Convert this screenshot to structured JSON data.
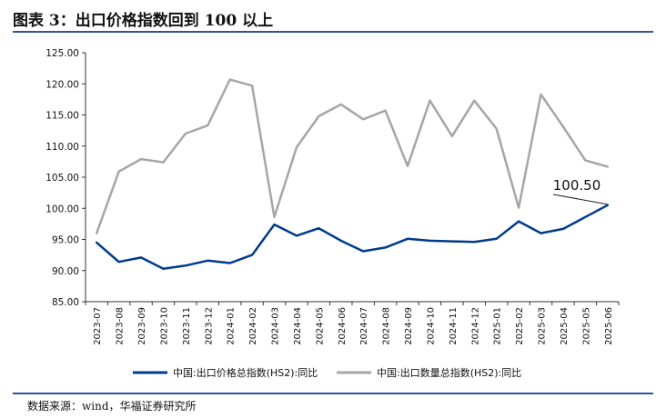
{
  "figure": {
    "title": "图表 3：出口价格指数回到 100 以上",
    "source": "数据来源：wind，华福证券研究所"
  },
  "chart_data": {
    "type": "line",
    "title": "",
    "xlabel": "",
    "ylabel": "",
    "ylim": [
      85,
      125
    ],
    "ytick_labels": [
      "85.00",
      "90.00",
      "95.00",
      "100.00",
      "105.00",
      "110.00",
      "115.00",
      "120.00",
      "125.00"
    ],
    "grid": false,
    "legend_position": "bottom",
    "x": [
      "2023-07",
      "2023-08",
      "2023-09",
      "2023-10",
      "2023-11",
      "2023-12",
      "2024-01",
      "2024-02",
      "2024-03",
      "2024-04",
      "2024-05",
      "2024-06",
      "2024-07",
      "2024-08",
      "2024-09",
      "2024-10",
      "2024-11",
      "2024-12",
      "2025-01",
      "2025-02",
      "2025-03",
      "2025-04",
      "2025-05",
      "2025-06"
    ],
    "series": [
      {
        "name": "中国:出口价格总指数(HS2):同比",
        "color": "#003B8E",
        "values": [
          94.5,
          91.4,
          92.1,
          90.3,
          90.8,
          91.6,
          91.2,
          92.5,
          97.4,
          95.6,
          96.8,
          94.8,
          93.1,
          93.7,
          95.1,
          94.8,
          94.7,
          94.6,
          95.1,
          97.9,
          96.0,
          96.7,
          98.6,
          100.5
        ]
      },
      {
        "name": "中国:出口数量总指数(HS2):同比",
        "color": "#A6A6A6",
        "values": [
          96.0,
          105.9,
          107.9,
          107.4,
          112.0,
          113.3,
          120.7,
          119.7,
          98.6,
          109.8,
          114.8,
          116.7,
          114.3,
          115.7,
          106.8,
          117.3,
          111.6,
          117.3,
          112.8,
          100.1,
          118.3,
          113.1,
          107.7,
          106.7
        ]
      }
    ],
    "annotation": "100.50"
  }
}
